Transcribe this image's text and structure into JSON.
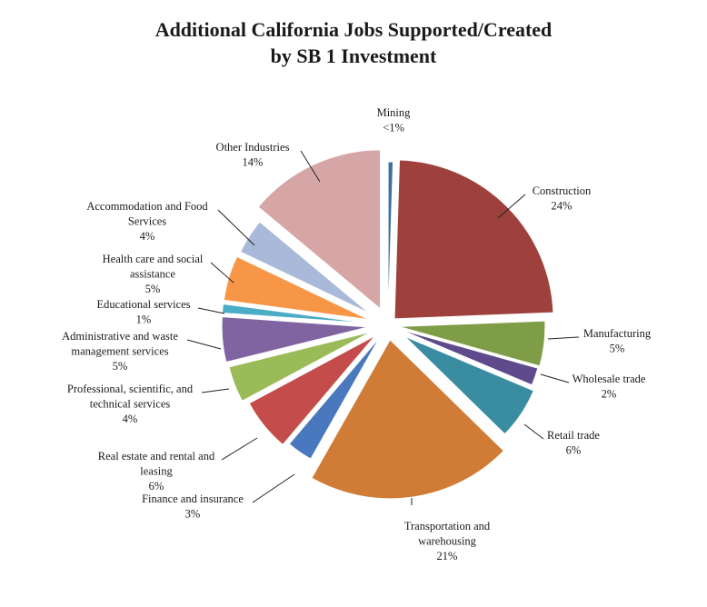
{
  "chart_data": {
    "type": "pie",
    "title_lines": [
      "Additional California Jobs Supported/Created",
      "by SB 1 Investment"
    ],
    "legend": "none",
    "slices": [
      {
        "name": "Mining",
        "value_label": "<1%",
        "value": 0.5,
        "color": "#3d6e9f"
      },
      {
        "name": "Construction",
        "value_label": "24%",
        "value": 24,
        "color": "#9e403c"
      },
      {
        "name": "Manufacturing",
        "value_label": "5%",
        "value": 5,
        "color": "#7f9c47"
      },
      {
        "name": "Wholesale trade",
        "value_label": "2%",
        "value": 2,
        "color": "#5f4a8b"
      },
      {
        "name": "Retail trade",
        "value_label": "6%",
        "value": 6,
        "color": "#3a8da0"
      },
      {
        "name": "Transportation and warehousing",
        "value_label": "21%",
        "value": 21,
        "color": "#d07c36"
      },
      {
        "name": "Finance and insurance",
        "value_label": "3%",
        "value": 3,
        "color": "#4a78be"
      },
      {
        "name": "Real estate and rental and leasing",
        "value_label": "6%",
        "value": 6,
        "color": "#c44d4b"
      },
      {
        "name": "Professional, scientific, and technical services",
        "value_label": "4%",
        "value": 4,
        "color": "#9bbb59"
      },
      {
        "name": "Administrative and waste management services",
        "value_label": "5%",
        "value": 5,
        "color": "#8064a2"
      },
      {
        "name": "Educational services",
        "value_label": "1%",
        "value": 1,
        "color": "#4bacc6"
      },
      {
        "name": "Health care and social assistance",
        "value_label": "5%",
        "value": 5,
        "color": "#f79646"
      },
      {
        "name": "Accommodation and Food Services",
        "value_label": "4%",
        "value": 4,
        "color": "#a9b9d9"
      },
      {
        "name": "Other Industries",
        "value_label": "14%",
        "value": 14,
        "color": "#d6a6a6"
      }
    ],
    "label_lines": [
      [
        "Mining",
        "<1%"
      ],
      [
        "Construction",
        "24%"
      ],
      [
        "Manufacturing",
        "5%"
      ],
      [
        "Wholesale trade",
        "2%"
      ],
      [
        "Retail trade",
        "6%"
      ],
      [
        "Transportation and",
        "warehousing",
        "21%"
      ],
      [
        "Finance and insurance",
        "3%"
      ],
      [
        "Real estate and rental and",
        "leasing",
        "6%"
      ],
      [
        "Professional, scientific, and",
        "technical services",
        "4%"
      ],
      [
        "Administrative and waste",
        "management services",
        "5%"
      ],
      [
        "Educational services",
        "1%"
      ],
      [
        "Health care and social",
        "assistance",
        "5%"
      ],
      [
        "Accommodation and Food",
        "Services",
        "4%"
      ],
      [
        "Other Industries",
        "14%"
      ]
    ]
  }
}
